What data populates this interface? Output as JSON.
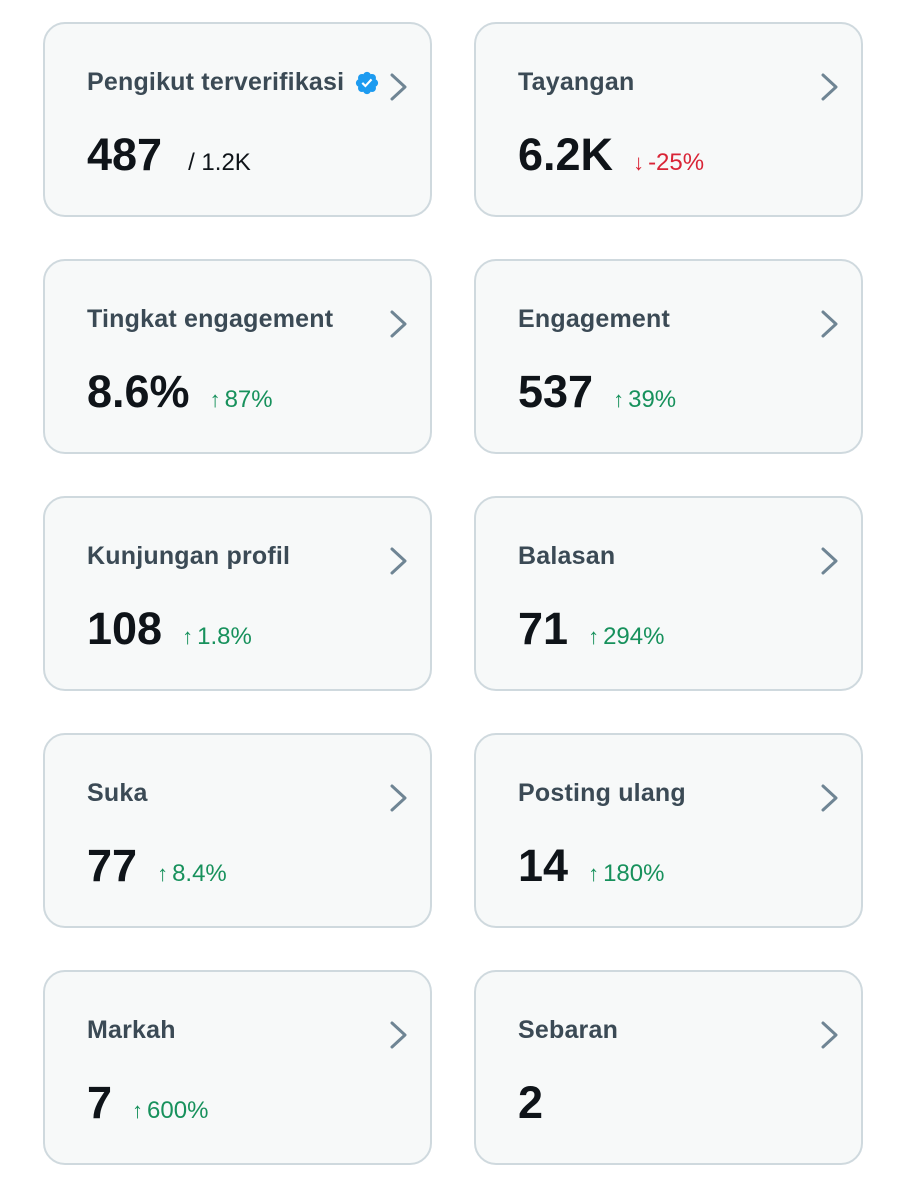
{
  "colors": {
    "card_bg": "#f7f9f9",
    "card_border": "#cfd9de",
    "label": "#3b4a55",
    "value": "#0f1419",
    "positive": "#17915c",
    "negative": "#d92436",
    "verified": "#1d9bf0",
    "chevron": "#6f8594"
  },
  "cards": [
    {
      "label": "Pengikut terverifikasi",
      "value": "487",
      "sub": "/ 1.2K",
      "verified_icon": "verified-badge-icon"
    },
    {
      "label": "Tayangan",
      "value": "6.2K",
      "delta_arrow": "↓",
      "delta": "-25%",
      "direction": "down"
    },
    {
      "label": "Tingkat engagement",
      "value": "8.6%",
      "delta_arrow": "↑",
      "delta": "87%",
      "direction": "up"
    },
    {
      "label": "Engagement",
      "value": "537",
      "delta_arrow": "↑",
      "delta": "39%",
      "direction": "up"
    },
    {
      "label": "Kunjungan profil",
      "value": "108",
      "delta_arrow": "↑",
      "delta": "1.8%",
      "direction": "up"
    },
    {
      "label": "Balasan",
      "value": "71",
      "delta_arrow": "↑",
      "delta": "294%",
      "direction": "up"
    },
    {
      "label": "Suka",
      "value": "77",
      "delta_arrow": "↑",
      "delta": "8.4%",
      "direction": "up"
    },
    {
      "label": "Posting ulang",
      "value": "14",
      "delta_arrow": "↑",
      "delta": "180%",
      "direction": "up"
    },
    {
      "label": "Markah",
      "value": "7",
      "delta_arrow": "↑",
      "delta": "600%",
      "direction": "up"
    },
    {
      "label": "Sebaran",
      "value": "2"
    }
  ]
}
